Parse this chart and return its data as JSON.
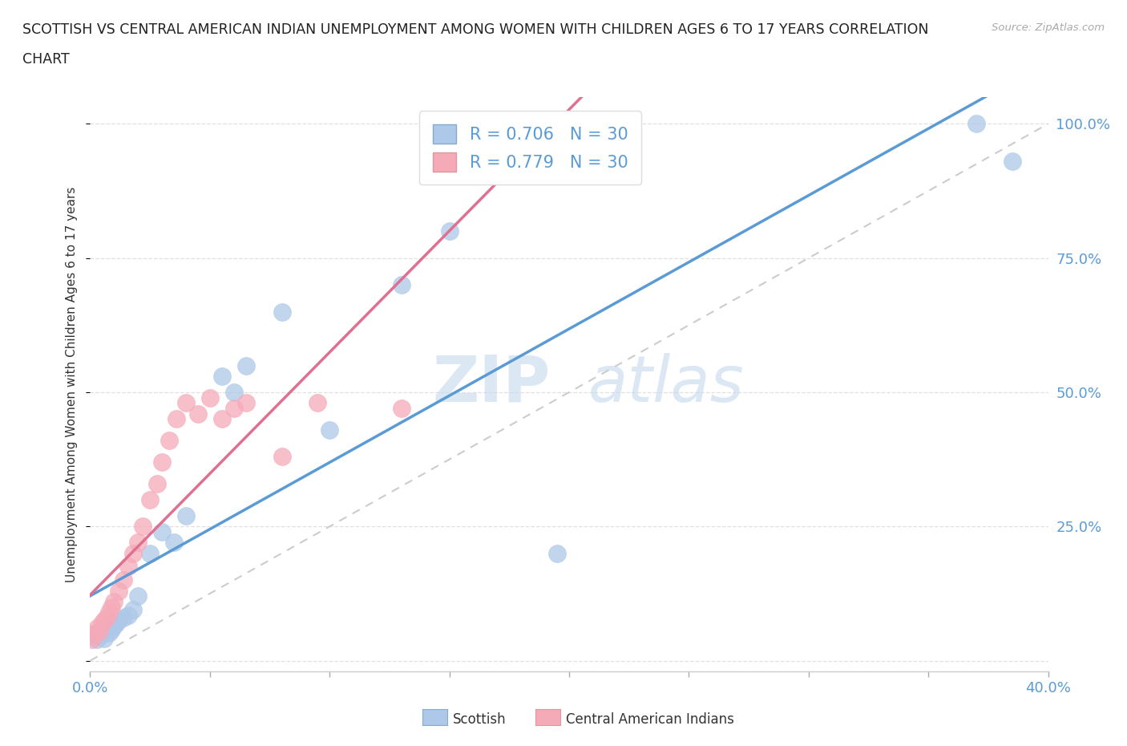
{
  "title_line1": "SCOTTISH VS CENTRAL AMERICAN INDIAN UNEMPLOYMENT AMONG WOMEN WITH CHILDREN AGES 6 TO 17 YEARS CORRELATION",
  "title_line2": "CHART",
  "source": "Source: ZipAtlas.com",
  "ylabel": "Unemployment Among Women with Children Ages 6 to 17 years",
  "xlim": [
    0.0,
    0.4
  ],
  "ylim": [
    -0.02,
    1.05
  ],
  "scottish_color": "#adc8e8",
  "cai_color": "#f5aab8",
  "scottish_line_color": "#5b9bd5",
  "cai_line_color": "#e07090",
  "ref_line_color": "#cccccc",
  "watermark_zip": "ZIP",
  "watermark_atlas": "atlas",
  "background_color": "#ffffff",
  "grid_color": "#e0e0e0",
  "scottish_x": [
    0.001,
    0.002,
    0.003,
    0.004,
    0.005,
    0.006,
    0.007,
    0.008,
    0.009,
    0.01,
    0.011,
    0.012,
    0.014,
    0.016,
    0.018,
    0.02,
    0.025,
    0.03,
    0.035,
    0.04,
    0.055,
    0.06,
    0.065,
    0.08,
    0.1,
    0.13,
    0.15,
    0.195,
    0.37,
    0.385
  ],
  "scottish_y": [
    0.05,
    0.045,
    0.04,
    0.055,
    0.048,
    0.042,
    0.06,
    0.052,
    0.058,
    0.065,
    0.07,
    0.075,
    0.08,
    0.085,
    0.095,
    0.12,
    0.2,
    0.24,
    0.22,
    0.27,
    0.53,
    0.5,
    0.55,
    0.65,
    0.43,
    0.7,
    0.8,
    0.2,
    1.0,
    0.93
  ],
  "cai_x": [
    0.001,
    0.002,
    0.003,
    0.004,
    0.005,
    0.006,
    0.007,
    0.008,
    0.009,
    0.01,
    0.012,
    0.014,
    0.016,
    0.018,
    0.02,
    0.022,
    0.025,
    0.028,
    0.03,
    0.033,
    0.036,
    0.04,
    0.045,
    0.05,
    0.055,
    0.06,
    0.065,
    0.08,
    0.095,
    0.13
  ],
  "cai_y": [
    0.04,
    0.05,
    0.06,
    0.055,
    0.07,
    0.075,
    0.08,
    0.09,
    0.1,
    0.11,
    0.13,
    0.15,
    0.175,
    0.2,
    0.22,
    0.25,
    0.3,
    0.33,
    0.37,
    0.41,
    0.45,
    0.48,
    0.46,
    0.49,
    0.45,
    0.47,
    0.48,
    0.38,
    0.48,
    0.47
  ],
  "scottish_r": 0.706,
  "scottish_n": 30,
  "cai_r": 0.779,
  "cai_n": 30
}
